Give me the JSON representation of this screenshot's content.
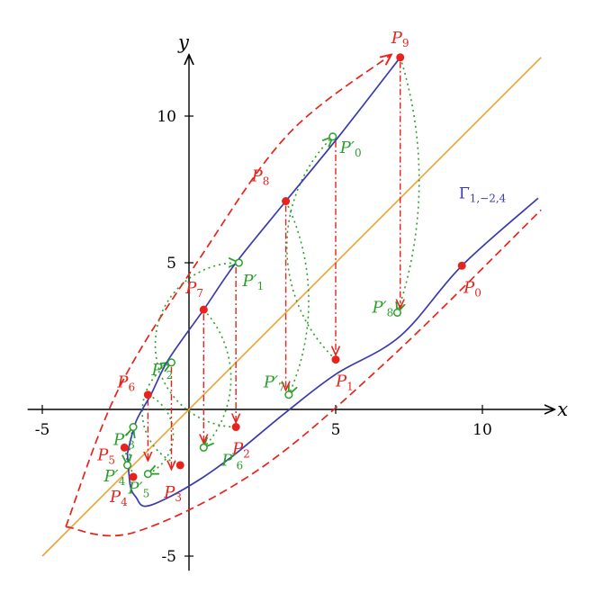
{
  "chart_data": {
    "type": "line",
    "title": "",
    "xlabel": "x",
    "ylabel": "y",
    "xlim": [
      -5.5,
      12
    ],
    "ylim": [
      -5.5,
      12
    ],
    "xticks": [
      -5,
      5,
      10
    ],
    "yticks": [
      -5,
      5,
      10
    ],
    "grid": false,
    "colors": {
      "curve": "#3a3ab0",
      "diagonal": "#f5a030",
      "envelope": "#e8231b",
      "points": "#e8231b",
      "rotated": "#2aa02a"
    },
    "curve_label": "Γ̅",
    "curve_label_sub": "1,−2,4",
    "diagonal": {
      "x": [
        -5,
        12
      ],
      "y": [
        -5,
        12
      ]
    },
    "curve_upper": {
      "x": [
        -2.1,
        -1.8,
        -1.3,
        -0.7,
        0.5,
        1.6,
        3.3,
        5.1,
        7.2
      ],
      "y": [
        -1.5,
        -0.4,
        0.5,
        1.7,
        3.4,
        5.0,
        7.1,
        9.3,
        12.0
      ]
    },
    "curve_lower": {
      "x": [
        -2.1,
        -2.0,
        -1.8,
        -1.5,
        -0.7,
        0.5,
        1.6,
        3.3,
        5.0,
        7.2,
        9.3,
        11.9
      ],
      "y": [
        -1.5,
        -2.6,
        -3.0,
        -3.3,
        -3.0,
        -2.3,
        -1.5,
        -0.1,
        1.2,
        2.5,
        4.9,
        7.2
      ]
    },
    "envelope_upper": {
      "x": [
        -4.2,
        -2.4,
        0.4,
        3.4,
        6.9
      ],
      "y": [
        -4.0,
        0.7,
        5.2,
        9.4,
        12.1
      ]
    },
    "envelope_lower": {
      "x": [
        -4.2,
        -1.9,
        2.3,
        6.7,
        12.0
      ],
      "y": [
        -4.0,
        -4.2,
        -2.1,
        1.6,
        6.8
      ]
    },
    "points": [
      {
        "name": "P",
        "sub": "0",
        "x": 9.3,
        "y": 4.9
      },
      {
        "name": "P",
        "sub": "1",
        "x": 5.0,
        "y": 1.7
      },
      {
        "name": "P",
        "sub": "2",
        "x": 1.6,
        "y": -0.6
      },
      {
        "name": "P",
        "sub": "3",
        "x": -0.3,
        "y": -1.9
      },
      {
        "name": "P",
        "sub": "4",
        "x": -1.9,
        "y": -2.3
      },
      {
        "name": "P",
        "sub": "5",
        "x": -2.2,
        "y": -1.3
      },
      {
        "name": "P",
        "sub": "6",
        "x": -1.4,
        "y": 0.5
      },
      {
        "name": "P",
        "sub": "7",
        "x": 0.5,
        "y": 3.4
      },
      {
        "name": "P",
        "sub": "8",
        "x": 3.3,
        "y": 7.1
      },
      {
        "name": "P",
        "sub": "9",
        "x": 7.2,
        "y": 12.0
      }
    ],
    "rotated_points": [
      {
        "name": "P′",
        "sub": "0",
        "x": 4.9,
        "y": 9.3
      },
      {
        "name": "P′",
        "sub": "1",
        "x": 1.7,
        "y": 5.0
      },
      {
        "name": "P′",
        "sub": "2",
        "x": -0.6,
        "y": 1.6
      },
      {
        "name": "P′",
        "sub": "3",
        "x": -1.9,
        "y": -0.6
      },
      {
        "name": "P′",
        "sub": "4",
        "x": -2.1,
        "y": -1.9
      },
      {
        "name": "P′",
        "sub": "5",
        "x": -1.4,
        "y": -2.2
      },
      {
        "name": "P′",
        "sub": "6",
        "x": 0.5,
        "y": -1.3
      },
      {
        "name": "P′",
        "sub": "7",
        "x": 3.4,
        "y": 0.5
      },
      {
        "name": "P′",
        "sub": "8",
        "x": 7.1,
        "y": 3.3
      }
    ],
    "vertical_projections": [
      {
        "x": 7.2,
        "from": 12.0,
        "to": 3.3
      },
      {
        "x": 5.0,
        "from": 9.3,
        "to": 1.7
      },
      {
        "x": 3.3,
        "from": 7.1,
        "to": 0.5
      },
      {
        "x": 1.6,
        "from": 5.0,
        "to": -0.6
      },
      {
        "x": 0.5,
        "from": 3.4,
        "to": -1.3
      },
      {
        "x": -0.6,
        "from": 1.6,
        "to": -2.2
      },
      {
        "x": -1.4,
        "from": 0.5,
        "to": -1.9
      }
    ]
  }
}
